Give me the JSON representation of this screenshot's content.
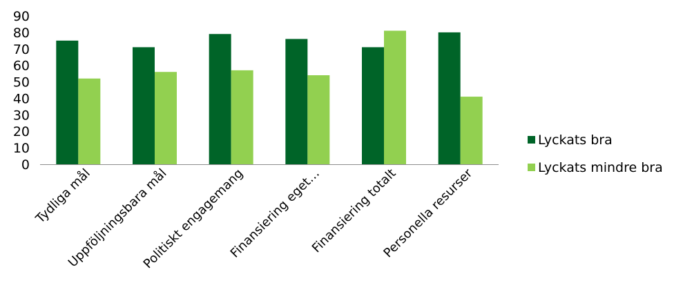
{
  "chart_data": {
    "type": "bar",
    "categories": [
      "Tydliga mål",
      "Uppföljningsbara mål",
      "Politiskt engagemang",
      "Finansiering eget…",
      "Finansiering totalt",
      "Personella resurser"
    ],
    "series": [
      {
        "name": "Lyckats bra",
        "color": "#006428",
        "values": [
          75,
          71,
          79,
          76,
          71,
          80
        ]
      },
      {
        "name": "Lyckats mindre bra",
        "color": "#92d050",
        "values": [
          52,
          56,
          57,
          54,
          81,
          41
        ]
      }
    ],
    "y_ticks": [
      0,
      10,
      20,
      30,
      40,
      50,
      60,
      70,
      80,
      90
    ],
    "ylim": [
      0,
      90
    ],
    "grid": false,
    "legend_position": "right"
  }
}
